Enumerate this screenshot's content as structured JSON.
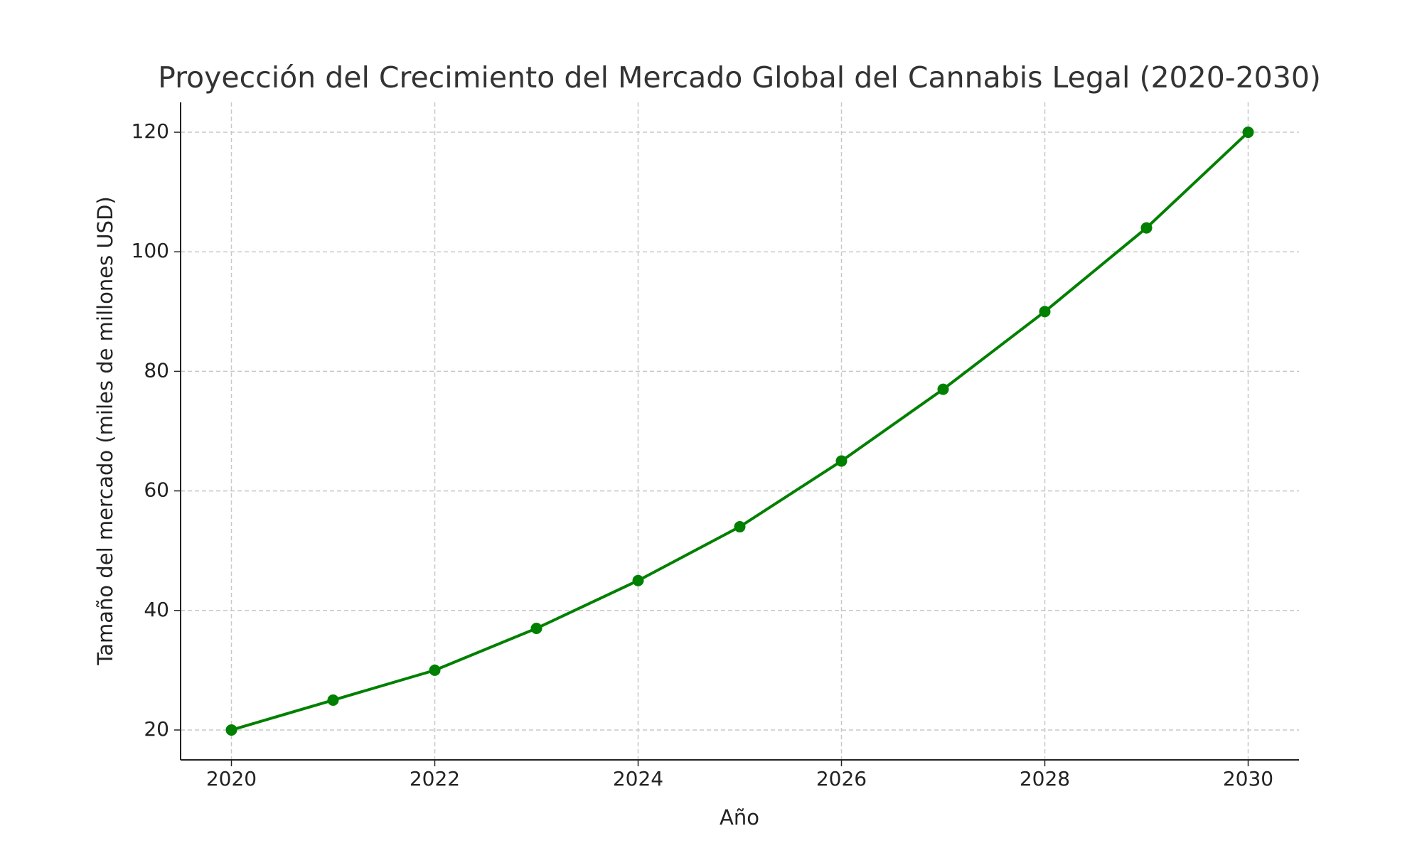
{
  "chart_data": {
    "type": "line",
    "title": "Proyección del Crecimiento del Mercado Global del Cannabis Legal (2020-2030)",
    "x_label": "Año",
    "y_label": "Tamaño del mercado (miles de millones USD)",
    "x": [
      2020,
      2021,
      2022,
      2023,
      2024,
      2025,
      2026,
      2027,
      2028,
      2029,
      2030
    ],
    "values": [
      20,
      25,
      30,
      37,
      45,
      54,
      65,
      77,
      90,
      104,
      120
    ],
    "color": "#008000",
    "xlim": [
      2019.5,
      2030.5
    ],
    "xticks": [
      2020,
      2022,
      2024,
      2026,
      2028,
      2030
    ],
    "ylim": [
      15,
      125
    ],
    "yticks": [
      20,
      40,
      60,
      80,
      100,
      120
    ],
    "grid": true
  }
}
